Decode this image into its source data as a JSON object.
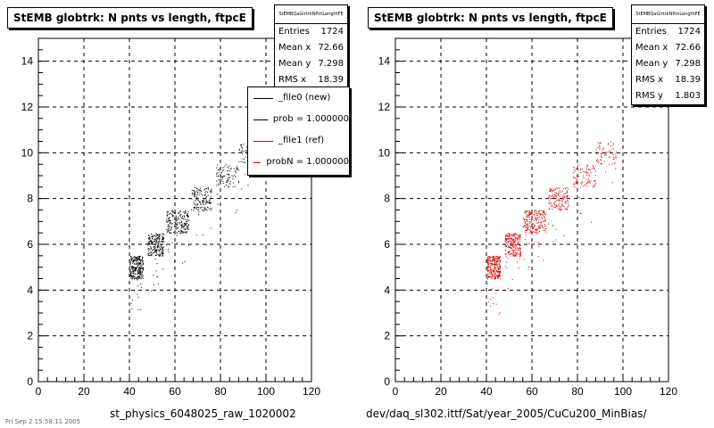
{
  "chart_data": [
    {
      "type": "scatter",
      "title": "StEMB globtrk: N pnts vs length, ftpcE",
      "xlabel": "st_physics_6048025_raw_1020002",
      "ylabel": "",
      "xlim": [
        0,
        120
      ],
      "ylim": [
        0,
        15
      ],
      "xticks": [
        0,
        20,
        40,
        60,
        80,
        100,
        120
      ],
      "yticks": [
        0,
        2,
        4,
        6,
        8,
        10,
        12,
        14
      ],
      "grid": true,
      "series": [
        {
          "name": "_file0 (new)",
          "color": "#000000",
          "clusters": [
            {
              "n": 5,
              "x": [
                40,
                46
              ],
              "density": 1.0
            },
            {
              "n": 6,
              "x": [
                48,
                55
              ],
              "density": 0.85
            },
            {
              "n": 7,
              "x": [
                56,
                66
              ],
              "density": 0.8
            },
            {
              "n": 8,
              "x": [
                67,
                76
              ],
              "density": 0.55
            },
            {
              "n": 9,
              "x": [
                78,
                88
              ],
              "density": 0.35
            },
            {
              "n": 10,
              "x": [
                88,
                97
              ],
              "density": 0.25
            }
          ]
        }
      ],
      "stats": {
        "header": "StEMBQaGlrtrkNPntLengthFE",
        "rows": [
          [
            "Entries",
            "1724"
          ],
          [
            "Mean x",
            "72.66"
          ],
          [
            "Mean y",
            "7.298"
          ],
          [
            "RMS x",
            "18.39"
          ]
        ]
      },
      "legend": {
        "placement": "top-right",
        "entries": [
          {
            "label": "_file0 (new)",
            "color": "#000000"
          },
          {
            "label": "prob = 1.000000",
            "color": "#000000"
          },
          {
            "label": "_file1 (ref)",
            "color": "#cc0000"
          },
          {
            "label": "probN = 1.000000",
            "color": "#cc0000"
          }
        ]
      }
    },
    {
      "type": "scatter",
      "title": "StEMB globtrk: N pnts vs length, ftpcE",
      "xlabel": "dev/daq_sl302.ittf/Sat/year_2005/CuCu200_MinBias/",
      "ylabel": "",
      "xlim": [
        0,
        120
      ],
      "ylim": [
        0,
        15
      ],
      "xticks": [
        0,
        20,
        40,
        60,
        80,
        100,
        120
      ],
      "yticks": [
        0,
        2,
        4,
        6,
        8,
        10,
        12,
        14
      ],
      "grid": true,
      "series": [
        {
          "name": "_file1 (ref)",
          "color": "#cc0000",
          "clusters": [
            {
              "n": 5,
              "x": [
                40,
                46
              ],
              "density": 1.0
            },
            {
              "n": 6,
              "x": [
                48,
                55
              ],
              "density": 0.85
            },
            {
              "n": 7,
              "x": [
                56,
                66
              ],
              "density": 0.8
            },
            {
              "n": 8,
              "x": [
                67,
                76
              ],
              "density": 0.55
            },
            {
              "n": 9,
              "x": [
                78,
                88
              ],
              "density": 0.35
            },
            {
              "n": 10,
              "x": [
                88,
                97
              ],
              "density": 0.25
            }
          ]
        }
      ],
      "stats": {
        "header": "StEMBQaGlrtrkNPntLengthFE",
        "rows": [
          [
            "Entries",
            "1724"
          ],
          [
            "Mean x",
            "72.66"
          ],
          [
            "Mean y",
            "7.298"
          ],
          [
            "RMS x",
            "18.39"
          ],
          [
            "RMS y",
            "1.803"
          ]
        ]
      }
    }
  ],
  "footer": "Fri Sep  2 15:58:11 2005"
}
